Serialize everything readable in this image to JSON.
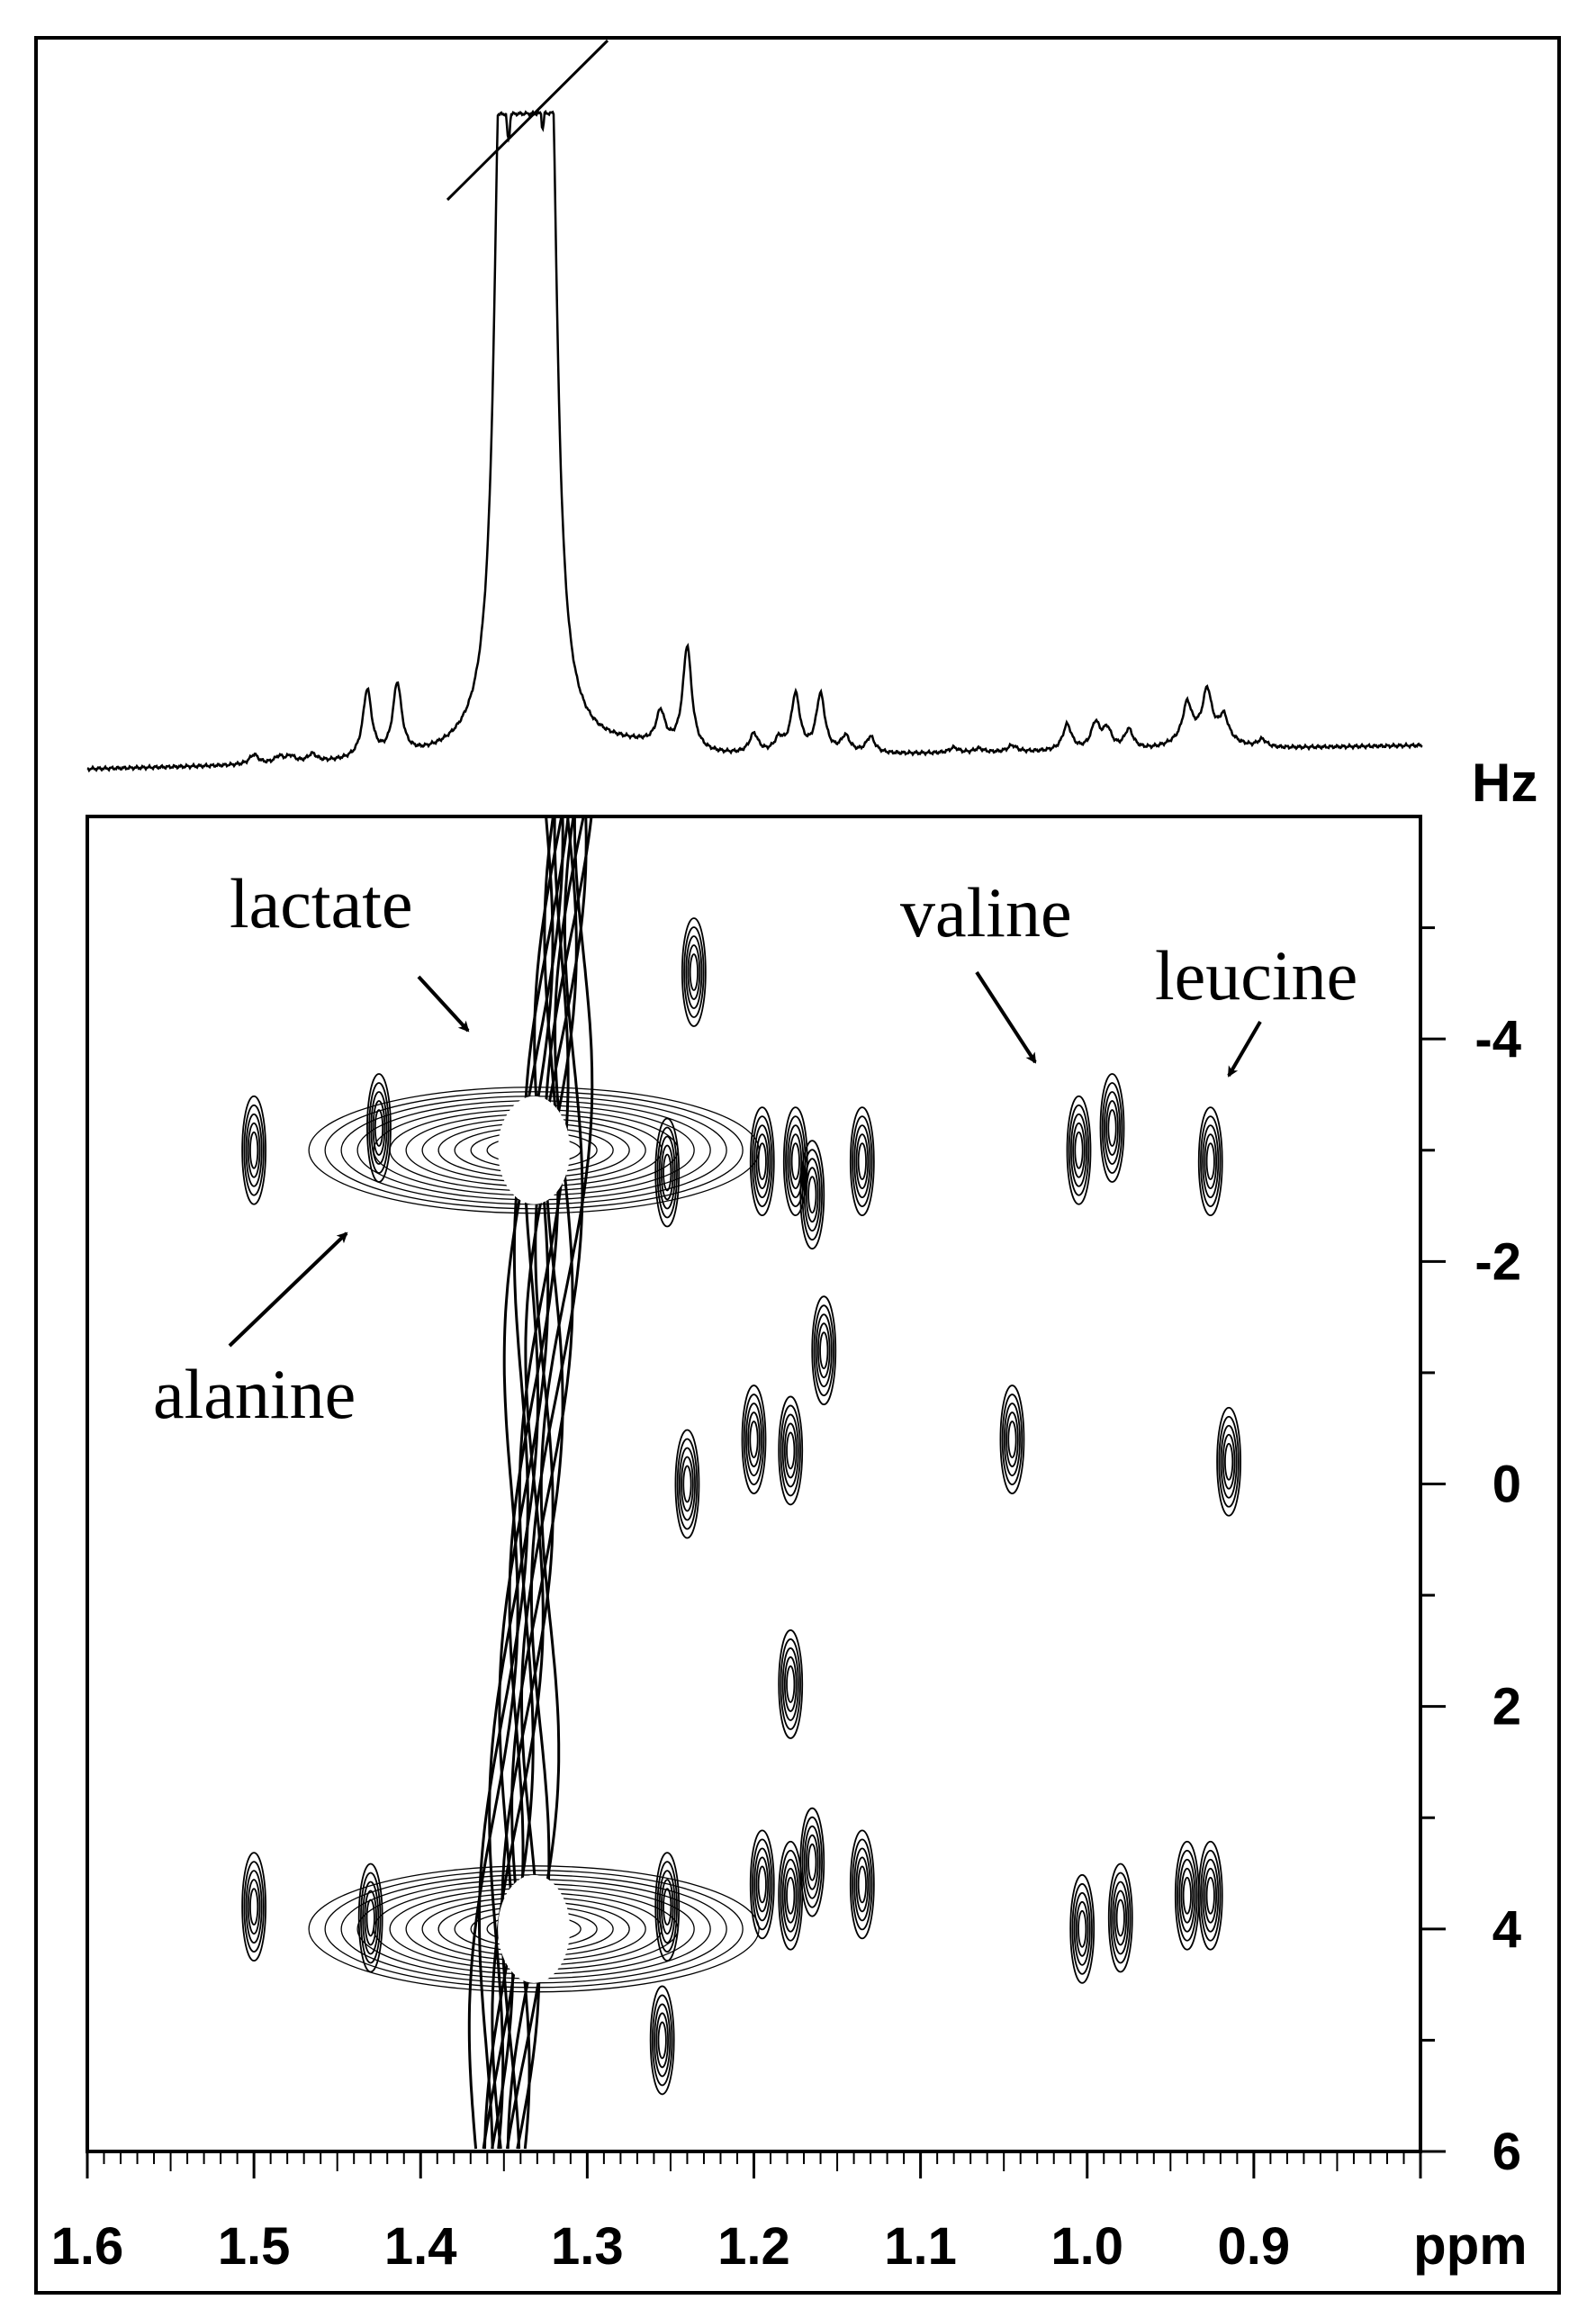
{
  "chart_data": {
    "type": "heatmap",
    "description_free": true,
    "x_axis": {
      "unit": "ppm",
      "range": [
        1.6,
        0.8
      ],
      "reversed": true,
      "ticks": [
        1.6,
        1.5,
        1.4,
        1.3,
        1.2,
        1.1,
        1.0,
        0.9
      ],
      "tick_labels": [
        "1.6",
        "1.5",
        "1.4",
        "1.3",
        "1.2",
        "1.1",
        "1.0",
        "0.9"
      ]
    },
    "y_axis": {
      "unit": "Hz",
      "range": [
        -6,
        6
      ],
      "ticks": [
        -4,
        -2,
        0,
        2,
        4,
        6
      ],
      "tick_labels": [
        "-4",
        "-2",
        "0",
        "2",
        "4",
        "6"
      ]
    },
    "annotations": [
      {
        "text": "lactate",
        "target_ppm": 1.36,
        "target_hz": -4.3
      },
      {
        "text": "valine",
        "target_ppm": 1.003,
        "target_hz": -4.0
      },
      {
        "text": "leucine",
        "target_ppm": 0.915,
        "target_hz": -3.8
      },
      {
        "text": "alanine",
        "target_ppm": 1.43,
        "target_hz": -2.4
      }
    ],
    "projection_1d": {
      "peaks": [
        {
          "ppm": 1.5,
          "height": 0.015
        },
        {
          "ppm": 1.485,
          "height": 0.01
        },
        {
          "ppm": 1.478,
          "height": 0.01
        },
        {
          "ppm": 1.465,
          "height": 0.012
        },
        {
          "ppm": 1.432,
          "height": 0.105
        },
        {
          "ppm": 1.414,
          "height": 0.11
        },
        {
          "ppm": 1.352,
          "height": 0.95
        },
        {
          "ppm": 1.342,
          "height": 0.95
        },
        {
          "ppm": 1.332,
          "height": 0.97
        },
        {
          "ppm": 1.322,
          "height": 0.97
        },
        {
          "ppm": 1.256,
          "height": 0.05
        },
        {
          "ppm": 1.24,
          "height": 0.16
        },
        {
          "ppm": 1.2,
          "height": 0.03
        },
        {
          "ppm": 1.185,
          "height": 0.02
        },
        {
          "ppm": 1.175,
          "height": 0.09
        },
        {
          "ppm": 1.16,
          "height": 0.09
        },
        {
          "ppm": 1.145,
          "height": 0.025
        },
        {
          "ppm": 1.13,
          "height": 0.025
        },
        {
          "ppm": 1.08,
          "height": 0.008
        },
        {
          "ppm": 1.065,
          "height": 0.006
        },
        {
          "ppm": 1.045,
          "height": 0.01
        },
        {
          "ppm": 1.012,
          "height": 0.04
        },
        {
          "ppm": 0.995,
          "height": 0.04
        },
        {
          "ppm": 0.988,
          "height": 0.03
        },
        {
          "ppm": 0.975,
          "height": 0.03
        },
        {
          "ppm": 0.94,
          "height": 0.055
        },
        {
          "ppm": 0.928,
          "height": 0.07
        },
        {
          "ppm": 0.918,
          "height": 0.035
        },
        {
          "ppm": 0.895,
          "height": 0.012
        }
      ]
    },
    "cross_peaks": [
      {
        "ppm": 1.5,
        "hz": -3.0
      },
      {
        "ppm": 1.425,
        "hz": -3.2
      },
      {
        "ppm": 1.236,
        "hz": -4.6
      },
      {
        "ppm": 1.252,
        "hz": -2.8
      },
      {
        "ppm": 1.195,
        "hz": -2.9
      },
      {
        "ppm": 1.175,
        "hz": -2.9
      },
      {
        "ppm": 1.165,
        "hz": -2.6
      },
      {
        "ppm": 1.135,
        "hz": -2.9
      },
      {
        "ppm": 1.005,
        "hz": -3.0
      },
      {
        "ppm": 0.985,
        "hz": -3.2
      },
      {
        "ppm": 0.926,
        "hz": -2.9
      },
      {
        "ppm": 1.158,
        "hz": -1.2
      },
      {
        "ppm": 1.24,
        "hz": 0.0
      },
      {
        "ppm": 1.2,
        "hz": -0.4
      },
      {
        "ppm": 1.178,
        "hz": -0.3
      },
      {
        "ppm": 1.045,
        "hz": -0.4
      },
      {
        "ppm": 0.915,
        "hz": -0.2
      },
      {
        "ppm": 1.178,
        "hz": 1.8
      },
      {
        "ppm": 1.5,
        "hz": 3.8
      },
      {
        "ppm": 1.43,
        "hz": 3.9
      },
      {
        "ppm": 1.252,
        "hz": 3.8
      },
      {
        "ppm": 1.195,
        "hz": 3.6
      },
      {
        "ppm": 1.178,
        "hz": 3.7
      },
      {
        "ppm": 1.165,
        "hz": 3.4
      },
      {
        "ppm": 1.135,
        "hz": 3.6
      },
      {
        "ppm": 1.003,
        "hz": 4.0
      },
      {
        "ppm": 0.98,
        "hz": 3.9
      },
      {
        "ppm": 0.94,
        "hz": 3.7
      },
      {
        "ppm": 0.926,
        "hz": 3.7
      },
      {
        "ppm": 1.255,
        "hz": 5.0
      }
    ],
    "lactate_multiplets": [
      {
        "ppm": 1.332,
        "hz": -3.0
      },
      {
        "ppm": 1.332,
        "hz": 4.0
      }
    ]
  }
}
